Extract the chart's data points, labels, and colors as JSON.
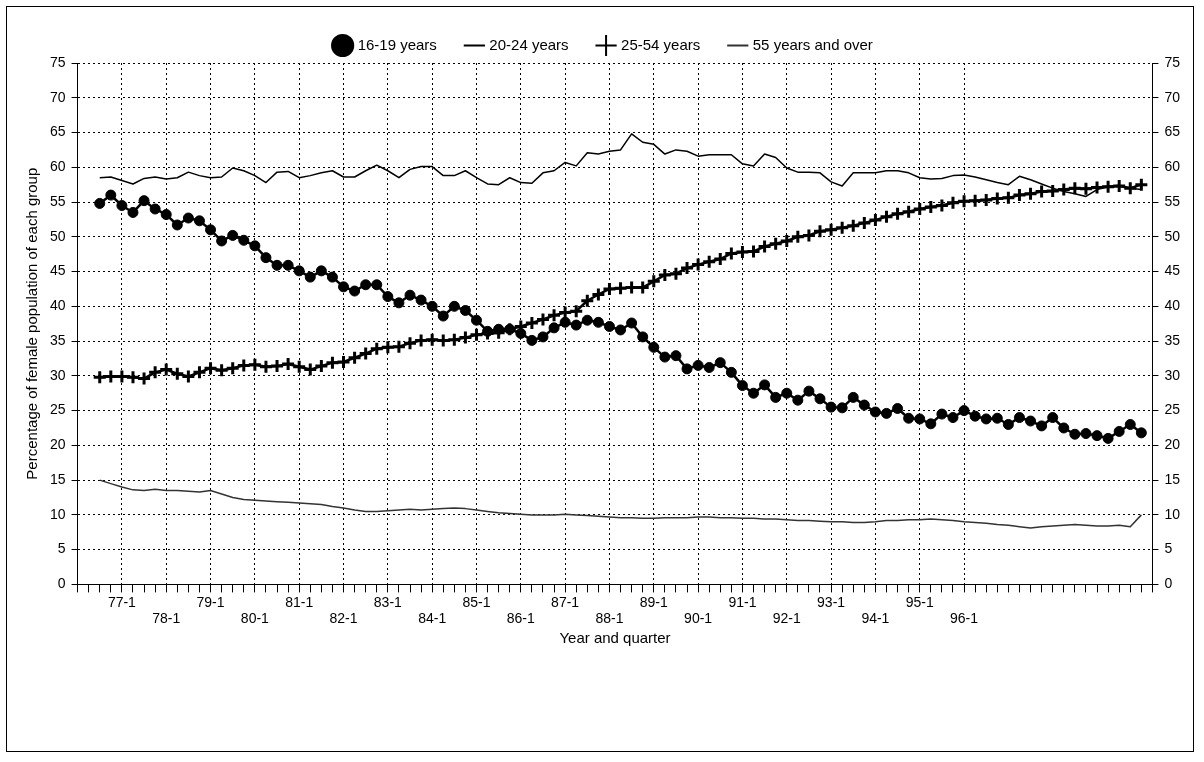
{
  "chart_data": {
    "type": "line",
    "xlabel": "Year and quarter",
    "ylabel": "Percentage of female population of each group",
    "categories": [
      null,
      null,
      null,
      null,
      "77-1",
      null,
      null,
      null,
      "78-1",
      null,
      null,
      null,
      "79-1",
      null,
      null,
      null,
      "80-1",
      null,
      null,
      null,
      "81-1",
      null,
      null,
      null,
      "82-1",
      null,
      null,
      null,
      "83-1",
      null,
      null,
      null,
      "84-1",
      null,
      null,
      null,
      "85-1",
      null,
      null,
      null,
      "86-1",
      null,
      null,
      null,
      "87-1",
      null,
      null,
      null,
      "88-1",
      null,
      null,
      null,
      "89-1",
      null,
      null,
      null,
      "90-1",
      null,
      null,
      null,
      "91-1",
      null,
      null,
      null,
      "92-1",
      null,
      null,
      null,
      "93-1",
      null,
      null,
      null,
      "94-1",
      null,
      null,
      null,
      "95-1",
      null,
      null,
      null,
      "96-1",
      null,
      null,
      null,
      null,
      null,
      null,
      null,
      null,
      null,
      null,
      null,
      null,
      null,
      null,
      null,
      null,
      null
    ],
    "series": [
      {
        "name": "16-19 years",
        "color": "#000000",
        "marker": "circle",
        "values": [
          null,
          null,
          54.8,
          56.0,
          54.5,
          53.5,
          55.2,
          54.0,
          53.2,
          51.7,
          52.7,
          52.3,
          51.0,
          49.4,
          50.2,
          49.5,
          48.7,
          47.0,
          45.9,
          45.9,
          45.1,
          44.2,
          45.1,
          44.2,
          42.8,
          42.2,
          43.1,
          43.1,
          41.4,
          40.5,
          41.6,
          40.9,
          40.0,
          38.6,
          40.0,
          39.4,
          38.0,
          36.4,
          36.7,
          36.7,
          36.1,
          35.1,
          35.6,
          36.9,
          37.7,
          37.3,
          38.0,
          37.7,
          37.1,
          36.6,
          37.6,
          35.6,
          34.1,
          32.7,
          32.9,
          31.0,
          31.5,
          31.2,
          31.9,
          30.5,
          28.6,
          27.5,
          28.7,
          26.9,
          27.5,
          26.5,
          27.8,
          26.7,
          25.5,
          25.4,
          26.9,
          25.8,
          24.8,
          24.6,
          25.3,
          23.9,
          23.8,
          23.1,
          24.5,
          24.0,
          25.0,
          24.2,
          23.8,
          23.9,
          23.0,
          24.0,
          23.5,
          22.8,
          24.0,
          22.5,
          21.6,
          21.7,
          21.4,
          21.0,
          22.0,
          23.0,
          21.8,
          null
        ]
      },
      {
        "name": "20-24 years",
        "color": "#000000",
        "marker": "none",
        "values": [
          null,
          null,
          58.5,
          58.6,
          58.1,
          57.6,
          58.4,
          58.6,
          58.3,
          58.5,
          59.3,
          58.8,
          58.5,
          58.6,
          59.9,
          59.5,
          58.8,
          57.8,
          59.3,
          59.4,
          58.5,
          58.8,
          59.2,
          59.5,
          58.6,
          58.6,
          59.5,
          60.3,
          59.5,
          58.5,
          59.7,
          60.1,
          60.1,
          58.8,
          58.8,
          59.5,
          58.5,
          57.6,
          57.5,
          58.5,
          57.8,
          57.7,
          59.2,
          59.5,
          60.7,
          60.2,
          62.1,
          61.9,
          62.3,
          62.5,
          64.8,
          63.6,
          63.3,
          61.9,
          62.5,
          62.3,
          61.6,
          61.8,
          61.8,
          61.8,
          60.5,
          60.2,
          61.9,
          61.4,
          59.9,
          59.3,
          59.3,
          59.2,
          57.9,
          57.3,
          59.2,
          59.2,
          59.2,
          59.5,
          59.5,
          59.2,
          58.5,
          58.3,
          58.4,
          58.8,
          58.9,
          58.6,
          58.2,
          57.8,
          57.5,
          58.7,
          58.2,
          57.6,
          57.0,
          56.5,
          56.2,
          55.8,
          56.8,
          57.2,
          57.4,
          57.0,
          56.8,
          null
        ]
      },
      {
        "name": "25-54 years",
        "color": "#000000",
        "marker": "cross",
        "values": [
          null,
          null,
          29.8,
          29.9,
          29.9,
          29.8,
          29.6,
          30.5,
          30.9,
          30.3,
          29.9,
          30.5,
          31.1,
          30.8,
          31.1,
          31.5,
          31.6,
          31.3,
          31.4,
          31.7,
          31.3,
          30.9,
          31.4,
          31.9,
          32.0,
          32.6,
          33.2,
          33.9,
          34.1,
          34.2,
          34.7,
          35.1,
          35.2,
          35.1,
          35.2,
          35.5,
          35.9,
          36.1,
          36.2,
          36.7,
          37.1,
          37.6,
          38.1,
          38.7,
          39.1,
          39.3,
          40.8,
          41.7,
          42.5,
          42.6,
          42.7,
          42.7,
          43.6,
          44.5,
          44.7,
          45.5,
          46.0,
          46.4,
          46.8,
          47.6,
          47.8,
          47.9,
          48.6,
          49.0,
          49.4,
          50.0,
          50.2,
          50.8,
          51.0,
          51.3,
          51.6,
          52.0,
          52.4,
          52.9,
          53.3,
          53.6,
          54.0,
          54.3,
          54.5,
          54.9,
          55.1,
          55.2,
          55.3,
          55.5,
          55.6,
          56.0,
          56.2,
          56.5,
          56.6,
          56.8,
          57.0,
          56.9,
          57.1,
          57.2,
          57.3,
          57.0,
          57.5,
          null
        ]
      },
      {
        "name": "55 years and over",
        "color": "#333333",
        "marker": "none",
        "values": [
          null,
          null,
          15.0,
          14.5,
          14.0,
          13.6,
          13.5,
          13.7,
          13.5,
          13.5,
          13.4,
          13.3,
          13.5,
          13.0,
          12.5,
          12.2,
          12.1,
          12.0,
          11.9,
          11.8,
          11.7,
          11.6,
          11.5,
          11.2,
          11.0,
          10.7,
          10.5,
          10.5,
          10.6,
          10.7,
          10.8,
          10.7,
          10.8,
          10.9,
          11.0,
          10.9,
          10.7,
          10.5,
          10.3,
          10.2,
          10.1,
          10.0,
          10.0,
          10.0,
          10.1,
          10.0,
          9.9,
          9.8,
          9.7,
          9.6,
          9.6,
          9.5,
          9.5,
          9.6,
          9.6,
          9.6,
          9.7,
          9.7,
          9.6,
          9.6,
          9.5,
          9.5,
          9.4,
          9.4,
          9.3,
          9.2,
          9.2,
          9.1,
          9.0,
          9.0,
          8.9,
          8.9,
          9.0,
          9.2,
          9.2,
          9.3,
          9.3,
          9.4,
          9.3,
          9.2,
          9.0,
          8.9,
          8.8,
          8.6,
          8.5,
          8.3,
          8.1,
          8.3,
          8.4,
          8.5,
          8.6,
          8.5,
          8.4,
          8.4,
          8.5,
          8.3,
          10.0,
          null
        ]
      }
    ],
    "ylim": [
      0,
      75
    ],
    "yticks": [
      0,
      5,
      10,
      15,
      20,
      25,
      30,
      35,
      40,
      45,
      50,
      55,
      60,
      65,
      70,
      75
    ],
    "y2lim": [
      0,
      75
    ],
    "y2ticks": [
      0,
      5,
      10,
      15,
      20,
      25,
      30,
      35,
      40,
      45,
      50,
      55,
      60,
      65,
      70,
      75
    ],
    "grid": true,
    "legend": "top",
    "line_style": "solid"
  }
}
